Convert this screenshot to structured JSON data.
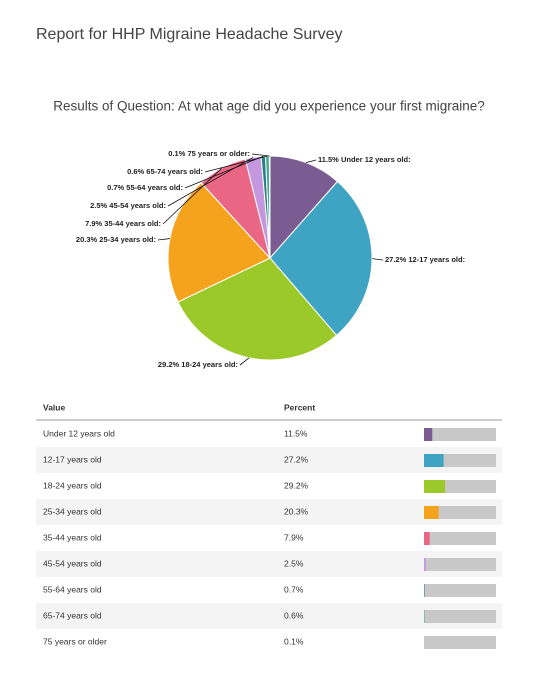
{
  "header": {
    "title": "Report for HHP Migraine Headache Survey"
  },
  "chart_data": {
    "type": "pie",
    "title": "Results of Question: At what age did you experience your first migraine?",
    "categories": [
      "Under 12 years old:",
      "12-17 years old:",
      "18-24 years old:",
      "25-34 years old:",
      "35-44 years old:",
      "45-54 years old:",
      "55-64 years old:",
      "65-74 years old:",
      "75 years or older:"
    ],
    "values": [
      11.5,
      27.2,
      29.2,
      20.3,
      7.9,
      2.5,
      0.7,
      0.6,
      0.1
    ],
    "value_labels": [
      "11.5%",
      "27.2%",
      "29.2%",
      "20.3%",
      "7.9%",
      "2.5%",
      "0.7%",
      "0.6%",
      "0.1%"
    ],
    "colors": [
      "#7b5c92",
      "#3fa3c4",
      "#9bc92a",
      "#f5a21c",
      "#ea6685",
      "#c597de",
      "#2a7f86",
      "#3fae8c",
      "#9ccfa8"
    ]
  },
  "table": {
    "columns": [
      "Value",
      "Percent"
    ],
    "rows": [
      [
        "Under 12 years old",
        "11.5%"
      ],
      [
        "12-17 years old",
        "27.2%"
      ],
      [
        "18-24 years old",
        "29.2%"
      ],
      [
        "25-34 years old",
        "20.3%"
      ],
      [
        "35-44 years old",
        "7.9%"
      ],
      [
        "45-54 years old",
        "2.5%"
      ],
      [
        "55-64 years old",
        "0.7%"
      ],
      [
        "65-74 years old",
        "0.6%"
      ],
      [
        "75 years or older",
        "0.1%"
      ]
    ]
  }
}
